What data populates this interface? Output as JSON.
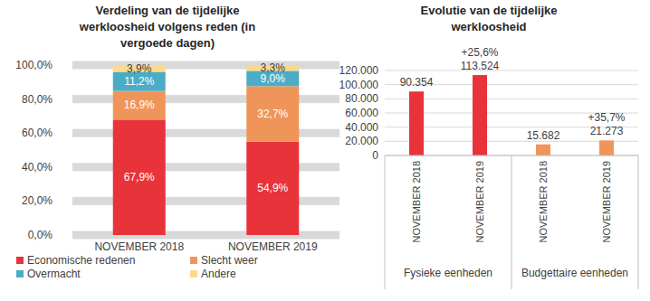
{
  "chart_data": [
    {
      "type": "bar",
      "title": "Verdeling van de tijdelijke werkloosheid volgens reden (in vergoede dagen)",
      "categories": [
        "NOVEMBER 2018",
        "NOVEMBER 2019"
      ],
      "stacked": true,
      "data_labels": true,
      "grid": true,
      "legend": "bottom",
      "ylim": [
        0,
        100
      ],
      "yticks": [
        {
          "value": 0,
          "label": "0,0%"
        },
        {
          "value": 20,
          "label": "20,0%"
        },
        {
          "value": 40,
          "label": "40,0%"
        },
        {
          "value": 60,
          "label": "60,0%"
        },
        {
          "value": 80,
          "label": "80,0%"
        },
        {
          "value": 100,
          "label": "100,0%"
        }
      ],
      "series": [
        {
          "name": "Economische redenen",
          "color": "#e8333a",
          "values": [
            67.9,
            54.9
          ],
          "value_labels": [
            "67,9%",
            "54,9%"
          ]
        },
        {
          "name": "Slecht weer",
          "color": "#f0955a",
          "values": [
            16.9,
            32.7
          ],
          "value_labels": [
            "16,9%",
            "32,7%"
          ]
        },
        {
          "name": "Overmacht",
          "color": "#4bacc6",
          "values": [
            11.2,
            9.0
          ],
          "value_labels": [
            "11,2%",
            "9,0%"
          ]
        },
        {
          "name": "Andere",
          "color": "#fcd98c",
          "values": [
            3.9,
            3.3
          ],
          "value_labels": [
            "3,9%",
            "3,3%"
          ]
        }
      ]
    },
    {
      "type": "bar",
      "title": "Evolutie van de tijdelijke werkloosheid",
      "categories": [
        "NOVEMBER 2018",
        "NOVEMBER 2019",
        "NOVEMBER 2018",
        "NOVEMBER 2019"
      ],
      "values": [
        90354,
        113524,
        15682,
        21273
      ],
      "value_labels": [
        "90.354",
        "113.524",
        "15.682",
        "21.273"
      ],
      "colors": [
        "#e8333a",
        "#e8333a",
        "#f0955a",
        "#f0955a"
      ],
      "data_labels": true,
      "grid": true,
      "ylim": [
        0,
        120000
      ],
      "yticks": [
        0,
        {
          "value": 20000,
          "label": "20.000"
        },
        {
          "value": 40000,
          "label": "40.000"
        },
        {
          "value": 60000,
          "label": "60.000"
        },
        {
          "value": 80000,
          "label": "80.000"
        },
        {
          "value": 100000,
          "label": "100.000"
        },
        {
          "value": 120000,
          "label": "120.000"
        }
      ],
      "groups": [
        {
          "label": "Fysieke eenheden",
          "count": 2
        },
        {
          "label": "Budgettaire eenheden",
          "count": 2
        }
      ],
      "annotations": [
        {
          "label": "+25,6%",
          "index": 1
        },
        {
          "label": "+35,7%",
          "index": 3
        }
      ]
    }
  ]
}
